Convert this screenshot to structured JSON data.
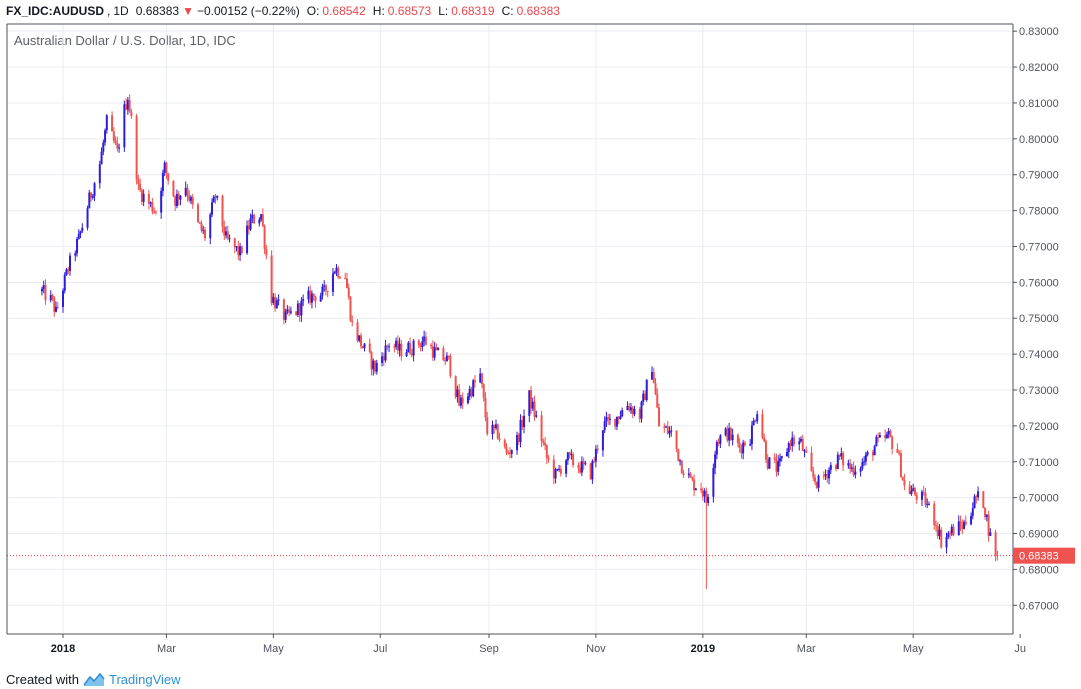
{
  "header": {
    "symbol": "FX_IDC:AUDUSD",
    "interval": "1D",
    "last": "0.68383",
    "change": "−0.00152 (−0.22%)",
    "open_label": "O:",
    "open": "0.68542",
    "high_label": "H:",
    "high": "0.68573",
    "low_label": "L:",
    "low": "0.68319",
    "close_label": "C:",
    "close": "0.68383"
  },
  "footer": {
    "text": "Created with",
    "brand": "TradingView"
  },
  "colors": {
    "up": "#2d1dd8",
    "down": "#ef5350",
    "grid": "#e9ecf2",
    "price_line": "#e53935"
  },
  "chart_data": {
    "type": "candlestick",
    "title": "Australian Dollar / U.S. Dollar, 1D, IDC",
    "ylim": [
      0.662,
      0.832
    ],
    "y_ticks": [
      "0.67000",
      "0.68000",
      "0.69000",
      "0.70000",
      "0.71000",
      "0.72000",
      "0.73000",
      "0.74000",
      "0.75000",
      "0.76000",
      "0.77000",
      "0.78000",
      "0.79000",
      "0.80000",
      "0.81000",
      "0.82000",
      "0.83000"
    ],
    "x_ticks": [
      {
        "label": "2018",
        "date": "2018-01-01",
        "bold": true
      },
      {
        "label": "Mar",
        "date": "2018-03-01"
      },
      {
        "label": "May",
        "date": "2018-05-01"
      },
      {
        "label": "Jul",
        "date": "2018-07-01"
      },
      {
        "label": "Sep",
        "date": "2018-09-01"
      },
      {
        "label": "Nov",
        "date": "2018-11-01"
      },
      {
        "label": "2019",
        "date": "2019-01-01",
        "bold": true
      },
      {
        "label": "Mar",
        "date": "2019-03-01"
      },
      {
        "label": "May",
        "date": "2019-05-01"
      },
      {
        "label": "Ju",
        "date": "2019-07-01"
      }
    ],
    "last_price_label": "0.68383",
    "last_price": 0.68383,
    "close_path": [
      [
        "2017-12-20",
        0.7575
      ],
      [
        "2017-12-26",
        0.7545
      ],
      [
        "2017-12-28",
        0.7515
      ],
      [
        "2018-01-04",
        0.764
      ],
      [
        "2018-01-10",
        0.772
      ],
      [
        "2018-01-16",
        0.783
      ],
      [
        "2018-01-22",
        0.793
      ],
      [
        "2018-01-26",
        0.8045
      ],
      [
        "2018-02-01",
        0.796
      ],
      [
        "2018-02-05",
        0.808
      ],
      [
        "2018-02-07",
        0.812
      ],
      [
        "2018-02-09",
        0.805
      ],
      [
        "2018-02-13",
        0.786
      ],
      [
        "2018-02-19",
        0.782
      ],
      [
        "2018-02-23",
        0.78
      ],
      [
        "2018-02-28",
        0.792
      ],
      [
        "2018-03-06",
        0.783
      ],
      [
        "2018-03-12",
        0.787
      ],
      [
        "2018-03-19",
        0.776
      ],
      [
        "2018-03-23",
        0.773
      ],
      [
        "2018-03-29",
        0.784
      ],
      [
        "2018-04-04",
        0.772
      ],
      [
        "2018-04-12",
        0.768
      ],
      [
        "2018-04-18",
        0.777
      ],
      [
        "2018-04-24",
        0.779
      ],
      [
        "2018-04-30",
        0.756
      ],
      [
        "2018-05-08",
        0.75
      ],
      [
        "2018-05-14",
        0.752
      ],
      [
        "2018-05-22",
        0.756
      ],
      [
        "2018-05-30",
        0.757
      ],
      [
        "2018-06-05",
        0.764
      ],
      [
        "2018-06-11",
        0.762
      ],
      [
        "2018-06-15",
        0.748
      ],
      [
        "2018-06-21",
        0.742
      ],
      [
        "2018-06-28",
        0.736
      ],
      [
        "2018-07-06",
        0.743
      ],
      [
        "2018-07-12",
        0.741
      ],
      [
        "2018-07-20",
        0.742
      ],
      [
        "2018-07-26",
        0.744
      ],
      [
        "2018-08-02",
        0.74
      ],
      [
        "2018-08-09",
        0.738
      ],
      [
        "2018-08-15",
        0.726
      ],
      [
        "2018-08-20",
        0.729
      ],
      [
        "2018-08-27",
        0.734
      ],
      [
        "2018-08-31",
        0.719
      ],
      [
        "2018-09-06",
        0.718
      ],
      [
        "2018-09-11",
        0.712
      ],
      [
        "2018-09-17",
        0.716
      ],
      [
        "2018-09-24",
        0.728
      ],
      [
        "2018-09-28",
        0.722
      ],
      [
        "2018-10-04",
        0.711
      ],
      [
        "2018-10-09",
        0.706
      ],
      [
        "2018-10-15",
        0.711
      ],
      [
        "2018-10-22",
        0.709
      ],
      [
        "2018-10-29",
        0.707
      ],
      [
        "2018-11-05",
        0.72
      ],
      [
        "2018-11-12",
        0.722
      ],
      [
        "2018-11-19",
        0.726
      ],
      [
        "2018-11-26",
        0.723
      ],
      [
        "2018-12-03",
        0.737
      ],
      [
        "2018-12-07",
        0.72
      ],
      [
        "2018-12-14",
        0.718
      ],
      [
        "2018-12-20",
        0.709
      ],
      [
        "2018-12-26",
        0.704
      ],
      [
        "2018-12-31",
        0.703
      ],
      [
        "2019-01-03",
        0.699
      ],
      [
        "2019-01-09",
        0.716
      ],
      [
        "2019-01-15",
        0.718
      ],
      [
        "2019-01-22",
        0.714
      ],
      [
        "2019-01-28",
        0.717
      ],
      [
        "2019-02-01",
        0.725
      ],
      [
        "2019-02-07",
        0.71
      ],
      [
        "2019-02-13",
        0.708
      ],
      [
        "2019-02-20",
        0.716
      ],
      [
        "2019-02-26",
        0.715
      ],
      [
        "2019-03-04",
        0.706
      ],
      [
        "2019-03-08",
        0.704
      ],
      [
        "2019-03-14",
        0.708
      ],
      [
        "2019-03-20",
        0.711
      ],
      [
        "2019-03-27",
        0.708
      ],
      [
        "2019-04-03",
        0.71
      ],
      [
        "2019-04-10",
        0.715
      ],
      [
        "2019-04-17",
        0.717
      ],
      [
        "2019-04-22",
        0.713
      ],
      [
        "2019-04-26",
        0.703
      ],
      [
        "2019-05-02",
        0.701
      ],
      [
        "2019-05-08",
        0.699
      ],
      [
        "2019-05-14",
        0.693
      ],
      [
        "2019-05-17",
        0.688
      ],
      [
        "2019-05-24",
        0.691
      ],
      [
        "2019-05-30",
        0.6925
      ],
      [
        "2019-06-06",
        0.7
      ],
      [
        "2019-06-10",
        0.699
      ],
      [
        "2019-06-14",
        0.689
      ],
      [
        "2019-06-18",
        0.6838
      ]
    ],
    "notable_low": [
      "2019-01-03",
      0.6745
    ]
  }
}
